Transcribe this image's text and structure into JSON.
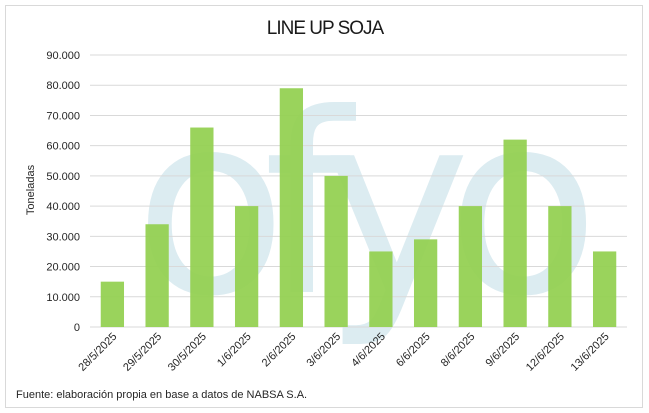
{
  "chart_data": {
    "type": "bar",
    "title": "LINE UP SOJA",
    "ylabel": "Toneladas",
    "xlabel": "",
    "categories": [
      "28/5/2025",
      "29/5/2025",
      "30/5/2025",
      "1/6/2025",
      "2/6/2025",
      "3/6/2025",
      "4/6/2025",
      "6/6/2025",
      "8/6/2025",
      "9/6/2025",
      "12/6/2025",
      "13/6/2025"
    ],
    "values": [
      15000,
      34000,
      66000,
      40000,
      79000,
      50000,
      25000,
      29000,
      40000,
      62000,
      40000,
      25000
    ],
    "ylim": [
      0,
      90000
    ],
    "yticks": [
      "0",
      "10.000",
      "20.000",
      "30.000",
      "40.000",
      "50.000",
      "60.000",
      "70.000",
      "80.000",
      "90.000"
    ],
    "grid": true,
    "bar_color": "#92d050"
  },
  "footer": {
    "source": "Fuente: elaboración propia en base a datos de NABSA S.A."
  },
  "watermark": {
    "text": "ofyo",
    "color": "#dcecf1"
  }
}
